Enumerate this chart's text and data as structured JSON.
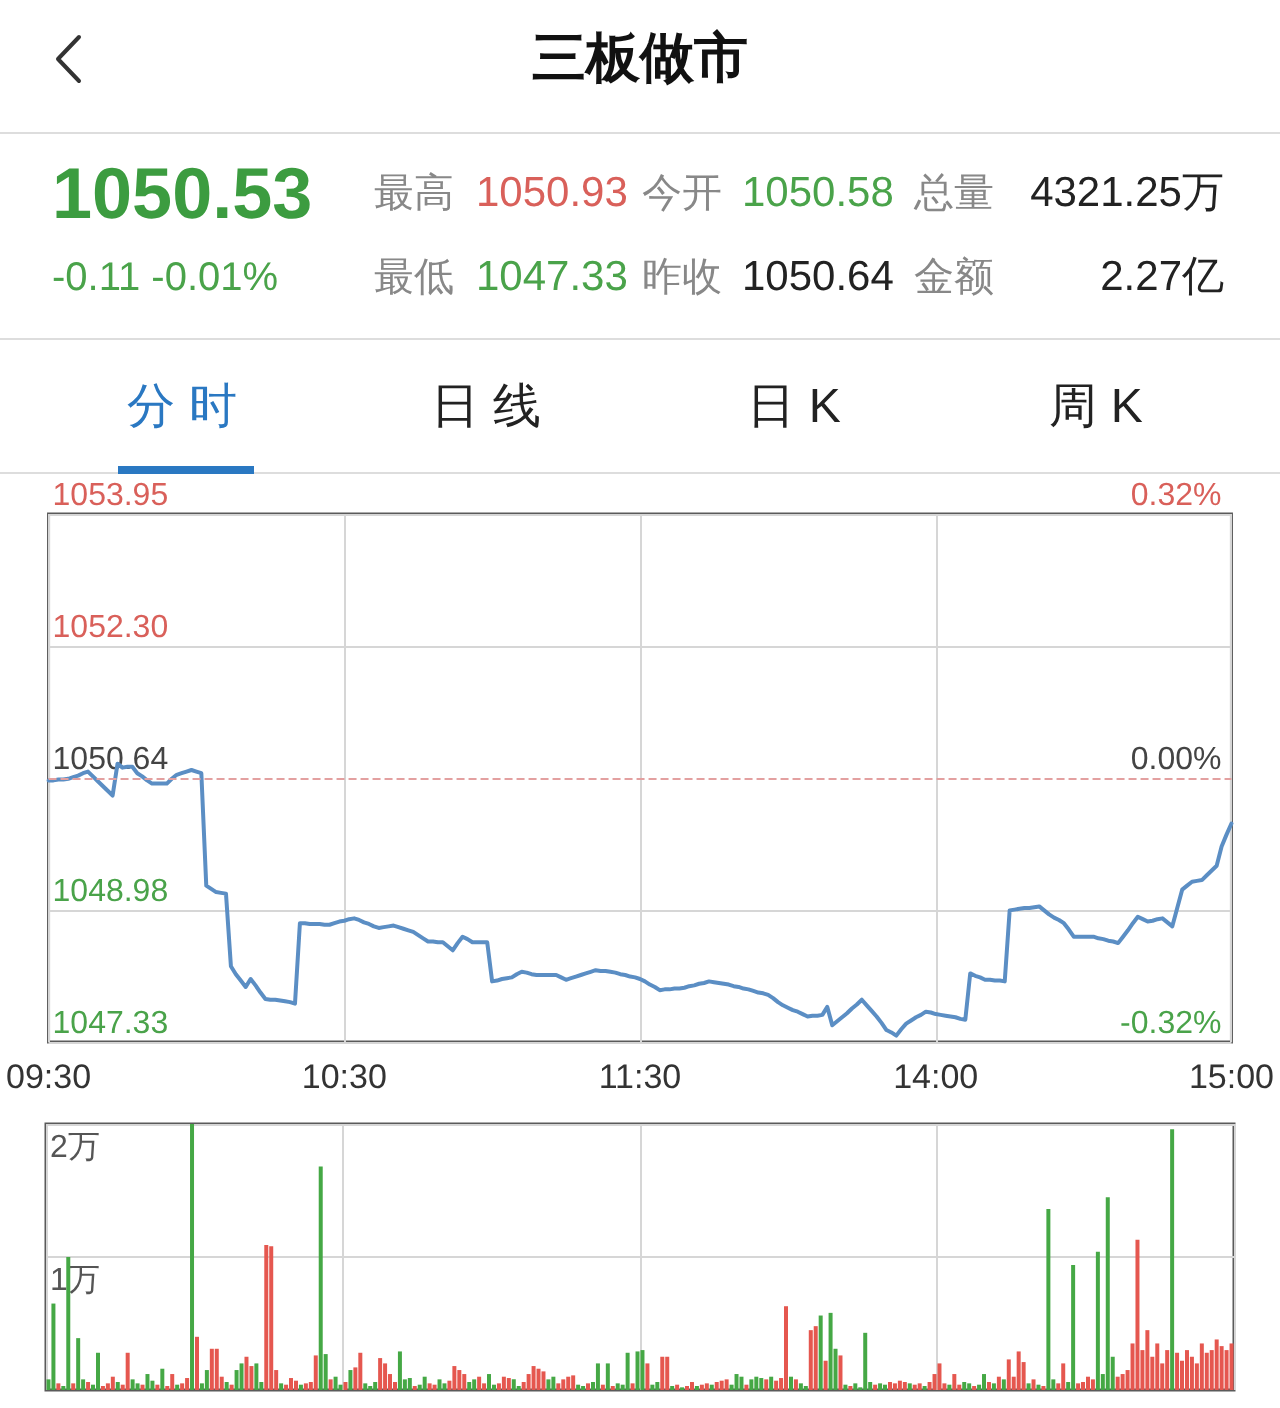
{
  "chart_data": [
    {
      "type": "line",
      "title": "三板做市",
      "annotations": [
        "1050.53",
        "-0.11 -0.01%",
        "最高",
        "1050.93",
        "今开",
        "1050.58",
        "总量",
        "4321.25万",
        "最低",
        "1047.33",
        "昨收",
        "1050.64",
        "金额",
        "2.27亿",
        "分 时",
        "日 线",
        "日 K",
        "周 K"
      ],
      "categories": [
        "09:30",
        null,
        null,
        null,
        null,
        null,
        null,
        null,
        null,
        null,
        null,
        null,
        null,
        null,
        null,
        null,
        null,
        null,
        null,
        null,
        null,
        null,
        null,
        null,
        null,
        null,
        null,
        null,
        null,
        null,
        null,
        null,
        null,
        null,
        null,
        null,
        null,
        null,
        null,
        null,
        null,
        null,
        null,
        null,
        null,
        null,
        null,
        null,
        null,
        null,
        null,
        null,
        null,
        null,
        null,
        null,
        null,
        null,
        null,
        null,
        "10:30",
        null,
        null,
        null,
        null,
        null,
        null,
        null,
        null,
        null,
        null,
        null,
        null,
        null,
        null,
        null,
        null,
        null,
        null,
        null,
        null,
        null,
        null,
        null,
        null,
        null,
        null,
        null,
        null,
        null,
        null,
        null,
        null,
        null,
        null,
        null,
        null,
        null,
        null,
        null,
        null,
        null,
        null,
        null,
        null,
        null,
        null,
        null,
        null,
        null,
        null,
        null,
        null,
        null,
        null,
        null,
        null,
        null,
        null,
        null,
        "11:30",
        null,
        null,
        null,
        null,
        null,
        null,
        null,
        null,
        null,
        null,
        null,
        null,
        null,
        null,
        null,
        null,
        null,
        null,
        null,
        null,
        null,
        null,
        null,
        null,
        null,
        null,
        null,
        null,
        null,
        null,
        null,
        null,
        null,
        null,
        null,
        null,
        null,
        null,
        null,
        null,
        null,
        null,
        null,
        null,
        null,
        null,
        null,
        null,
        null,
        null,
        null,
        null,
        null,
        null,
        null,
        null,
        null,
        null,
        null,
        "14:00",
        null,
        null,
        null,
        null,
        null,
        null,
        null,
        null,
        null,
        null,
        null,
        null,
        null,
        null,
        null,
        null,
        null,
        null,
        null,
        null,
        null,
        null,
        null,
        null,
        null,
        null,
        null,
        null,
        null,
        null,
        null,
        null,
        null,
        null,
        null,
        null,
        null,
        null,
        null,
        null,
        null,
        null,
        null,
        null,
        null,
        null,
        null,
        null,
        null,
        null,
        null,
        null,
        null,
        null,
        null,
        null,
        null,
        null,
        null,
        "15:00"
      ],
      "values": [
        1050.61,
        1050.61,
        1050.62,
        1050.62,
        1050.63,
        1050.65,
        1050.67,
        1050.7,
        1050.72,
        1050.66,
        1050.6,
        1050.54,
        1050.48,
        1050.42,
        1050.82,
        1050.77,
        1050.78,
        1050.78,
        1050.7,
        1050.66,
        1050.61,
        1050.57,
        1050.57,
        1050.57,
        1050.57,
        1050.63,
        1050.68,
        1050.7,
        1050.72,
        1050.74,
        1050.72,
        1050.7,
        1049.29,
        1049.25,
        1049.21,
        1049.2,
        1049.19,
        1048.28,
        1048.18,
        1048.1,
        1048.02,
        1048.12,
        1048.04,
        1047.95,
        1047.87,
        1047.86,
        1047.86,
        1047.85,
        1047.84,
        1047.83,
        1047.81,
        1048.82,
        1048.82,
        1048.81,
        1048.81,
        1048.81,
        1048.8,
        1048.8,
        1048.82,
        1048.84,
        1048.85,
        1048.87,
        1048.88,
        1048.86,
        1048.83,
        1048.81,
        1048.78,
        1048.76,
        1048.77,
        1048.78,
        1048.79,
        1048.77,
        1048.75,
        1048.73,
        1048.71,
        1048.67,
        1048.63,
        1048.59,
        1048.59,
        1048.58,
        1048.58,
        1048.53,
        1048.48,
        1048.57,
        1048.65,
        1048.62,
        1048.58,
        1048.58,
        1048.58,
        1048.58,
        1048.09,
        1048.1,
        1048.12,
        1048.13,
        1048.14,
        1048.18,
        1048.21,
        1048.2,
        1048.18,
        1048.17,
        1048.17,
        1048.17,
        1048.17,
        1048.17,
        1048.14,
        1048.11,
        1048.13,
        1048.15,
        1048.17,
        1048.19,
        1048.21,
        1048.23,
        1048.22,
        1048.22,
        1048.21,
        1048.2,
        1048.18,
        1048.17,
        1048.15,
        1048.14,
        1048.12,
        1048.09,
        1048.05,
        1048.02,
        1047.98,
        1047.99,
        1047.99,
        1048.0,
        1048.0,
        1048.01,
        1048.03,
        1048.04,
        1048.06,
        1048.07,
        1048.09,
        1048.08,
        1048.07,
        1048.06,
        1048.05,
        1048.03,
        1048.02,
        1048.0,
        1047.99,
        1047.97,
        1047.95,
        1047.94,
        1047.92,
        1047.88,
        1047.83,
        1047.79,
        1047.76,
        1047.73,
        1047.71,
        1047.68,
        1047.65,
        1047.66,
        1047.66,
        1047.67,
        1047.77,
        1047.54,
        1047.59,
        1047.64,
        1047.69,
        1047.75,
        1047.8,
        1047.86,
        1047.79,
        1047.72,
        1047.65,
        1047.57,
        1047.48,
        1047.45,
        1047.41,
        1047.49,
        1047.56,
        1047.6,
        1047.64,
        1047.67,
        1047.71,
        1047.7,
        1047.68,
        1047.67,
        1047.66,
        1047.65,
        1047.64,
        1047.62,
        1047.61,
        1048.19,
        1048.16,
        1048.14,
        1048.11,
        1048.11,
        1048.1,
        1048.1,
        1048.09,
        1048.98,
        1048.99,
        1049.0,
        1049.01,
        1049.01,
        1049.02,
        1049.03,
        1048.98,
        1048.93,
        1048.89,
        1048.86,
        1048.82,
        1048.74,
        1048.65,
        1048.65,
        1048.65,
        1048.65,
        1048.65,
        1048.63,
        1048.62,
        1048.6,
        1048.59,
        1048.57,
        1048.65,
        1048.73,
        1048.82,
        1048.9,
        1048.87,
        1048.84,
        1048.85,
        1048.87,
        1048.88,
        1048.83,
        1048.78,
        1049.01,
        1049.24,
        1049.29,
        1049.34,
        1049.35,
        1049.36,
        1049.42,
        1049.48,
        1049.54,
        1049.78,
        1049.93,
        1050.07
      ],
      "color": "#5b8ec4",
      "ylim": [
        1047.33,
        1053.95
      ],
      "yticks": [
        1047.33,
        1048.98,
        1050.64,
        {
          "value": 1052.3,
          "label": "1052.30"
        },
        1053.95
      ],
      "y2lim": [
        -0.32,
        0.32
      ],
      "y2ticks": [
        {
          "value": -0.32,
          "label": "-0.32%"
        },
        {
          "value": 0,
          "label": "0.00%"
        },
        {
          "value": 0.32,
          "label": "0.32%"
        }
      ],
      "ref_lines": [
        {
          "axis": "y",
          "value": 1050.64,
          "color": "#e3a0a0",
          "line_style": "dashed"
        }
      ],
      "grid": true
    },
    {
      "type": "bar",
      "categories": [
        null,
        null,
        null,
        null,
        null,
        null,
        null,
        null,
        null,
        null,
        null,
        null,
        null,
        null,
        null,
        null,
        null,
        null,
        null,
        null,
        null,
        null,
        null,
        null,
        null,
        null,
        null,
        null,
        null,
        null,
        null,
        null,
        null,
        null,
        null,
        null,
        null,
        null,
        null,
        null,
        null,
        null,
        null,
        null,
        null,
        null,
        null,
        null,
        null,
        null,
        null,
        null,
        null,
        null,
        null,
        null,
        null,
        null,
        null,
        null,
        null,
        null,
        null,
        null,
        null,
        null,
        null,
        null,
        null,
        null,
        null,
        null,
        null,
        null,
        null,
        null,
        null,
        null,
        null,
        null,
        null,
        null,
        null,
        null,
        null,
        null,
        null,
        null,
        null,
        null,
        null,
        null,
        null,
        null,
        null,
        null,
        null,
        null,
        null,
        null,
        null,
        null,
        null,
        null,
        null,
        null,
        null,
        null,
        null,
        null,
        null,
        null,
        null,
        null,
        null,
        null,
        null,
        null,
        null,
        null,
        null,
        null,
        null,
        null,
        null,
        null,
        null,
        null,
        null,
        null,
        null,
        null,
        null,
        null,
        null,
        null,
        null,
        null,
        null,
        null,
        null,
        null,
        null,
        null,
        null,
        null,
        null,
        null,
        null,
        null,
        null,
        null,
        null,
        null,
        null,
        null,
        null,
        null,
        null,
        null,
        null,
        null,
        null,
        null,
        null,
        null,
        null,
        null,
        null,
        null,
        null,
        null,
        null,
        null,
        null,
        null,
        null,
        null,
        null,
        null,
        null,
        null,
        null,
        null,
        null,
        null,
        null,
        null,
        null,
        null,
        null,
        null,
        null,
        null,
        null,
        null,
        null,
        null,
        null,
        null,
        null,
        null,
        null,
        null,
        null,
        null,
        null,
        null,
        null,
        null,
        null,
        null,
        null,
        null,
        null,
        null,
        null,
        null,
        null,
        null,
        null,
        null,
        null,
        null,
        null,
        null,
        null,
        null,
        null,
        null,
        null,
        null,
        null,
        null,
        null,
        null,
        null,
        null,
        null,
        null
      ],
      "values": [
        0.08,
        0.65,
        0.05,
        0.03,
        1.0,
        0.05,
        0.39,
        0.08,
        0.06,
        0.04,
        0.28,
        0.03,
        0.05,
        0.1,
        0.06,
        0.04,
        0.28,
        0.08,
        0.05,
        0.04,
        0.12,
        0.07,
        0.04,
        0.16,
        0.03,
        0.12,
        0.04,
        0.05,
        0.09,
        2.0,
        0.4,
        0.05,
        0.15,
        0.31,
        0.31,
        0.1,
        0.06,
        0.04,
        0.15,
        0.2,
        0.25,
        0.18,
        0.2,
        0.06,
        1.09,
        1.08,
        0.15,
        0.05,
        0.04,
        0.09,
        0.07,
        0.04,
        0.05,
        0.06,
        0.26,
        1.68,
        0.27,
        0.08,
        0.1,
        0.04,
        0.06,
        0.15,
        0.17,
        0.28,
        0.05,
        0.03,
        0.06,
        0.24,
        0.2,
        0.12,
        0.06,
        0.29,
        0.08,
        0.09,
        0.03,
        0.04,
        0.1,
        0.05,
        0.04,
        0.08,
        0.05,
        0.07,
        0.18,
        0.15,
        0.12,
        0.06,
        0.08,
        0.1,
        0.05,
        0.12,
        0.04,
        0.05,
        0.1,
        0.09,
        0.08,
        0.03,
        0.06,
        0.12,
        0.18,
        0.16,
        0.14,
        0.08,
        0.1,
        0.05,
        0.08,
        0.1,
        0.11,
        0.04,
        0.03,
        0.05,
        0.06,
        0.2,
        0.04,
        0.2,
        0.03,
        0.05,
        0.04,
        0.28,
        0.05,
        0.29,
        0.3,
        0.2,
        0.04,
        0.06,
        0.25,
        0.25,
        0.03,
        0.04,
        0.02,
        0.03,
        0.06,
        0.03,
        0.04,
        0.05,
        0.04,
        0.06,
        0.07,
        0.08,
        0.04,
        0.12,
        0.1,
        0.04,
        0.08,
        0.1,
        0.09,
        0.08,
        0.1,
        0.07,
        0.09,
        0.63,
        0.1,
        0.08,
        0.05,
        0.03,
        0.45,
        0.48,
        0.56,
        0.22,
        0.58,
        0.31,
        0.26,
        0.04,
        0.03,
        0.05,
        0.02,
        0.43,
        0.06,
        0.04,
        0.05,
        0.04,
        0.06,
        0.05,
        0.07,
        0.06,
        0.05,
        0.04,
        0.05,
        0.03,
        0.06,
        0.12,
        0.2,
        0.05,
        0.04,
        0.12,
        0.04,
        0.06,
        0.05,
        0.03,
        0.04,
        0.12,
        0.06,
        0.05,
        0.1,
        0.08,
        0.23,
        0.1,
        0.29,
        0.21,
        0.05,
        0.08,
        0.04,
        0.03,
        1.36,
        0.08,
        0.05,
        0.2,
        0.06,
        0.94,
        0.05,
        0.06,
        0.1,
        0.08,
        1.04,
        0.12,
        1.45,
        0.25,
        0.1,
        0.12,
        0.15,
        0.35,
        1.13,
        0.3,
        0.45,
        0.25,
        0.35,
        0.2,
        0.3,
        1.96,
        0.28,
        0.22,
        0.3,
        0.25,
        0.2,
        0.35,
        0.28,
        0.3,
        0.38,
        0.33,
        0.3,
        0.35
      ],
      "colors": [
        "#45a845",
        "#45a845",
        "#e5574f",
        "#45a845",
        "#45a845",
        "#e5574f",
        "#45a845",
        "#45a845",
        "#e5574f",
        "#45a845",
        "#45a845",
        "#e5574f",
        "#e5574f",
        "#e5574f",
        "#45a845",
        "#e5574f",
        "#e5574f",
        "#45a845",
        "#45a845",
        "#e5574f",
        "#45a845",
        "#45a845",
        "#e5574f",
        "#45a845",
        "#e5574f",
        "#e5574f",
        "#45a845",
        "#e5574f",
        "#e5574f",
        "#45a845",
        "#e5574f",
        "#45a845",
        "#45a845",
        "#e5574f",
        "#e5574f",
        "#e5574f",
        "#45a845",
        "#e5574f",
        "#45a845",
        "#45a845",
        "#e5574f",
        "#e5574f",
        "#45a845",
        "#45a845",
        "#e5574f",
        "#e5574f",
        "#e5574f",
        "#45a845",
        "#e5574f",
        "#e5574f",
        "#e5574f",
        "#45a845",
        "#e5574f",
        "#e5574f",
        "#e5574f",
        "#45a845",
        "#45a845",
        "#e5574f",
        "#45a845",
        "#45a845",
        "#e5574f",
        "#45a845",
        "#e5574f",
        "#e5574f",
        "#45a845",
        "#45a845",
        "#45a845",
        "#e5574f",
        "#e5574f",
        "#e5574f",
        "#e5574f",
        "#45a845",
        "#45a845",
        "#45a845",
        "#e5574f",
        "#45a845",
        "#45a845",
        "#e5574f",
        "#e5574f",
        "#45a845",
        "#45a845",
        "#e5574f",
        "#e5574f",
        "#e5574f",
        "#e5574f",
        "#45a845",
        "#45a845",
        "#e5574f",
        "#e5574f",
        "#45a845",
        "#45a845",
        "#e5574f",
        "#e5574f",
        "#e5574f",
        "#45a845",
        "#45a845",
        "#e5574f",
        "#e5574f",
        "#e5574f",
        "#e5574f",
        "#e5574f",
        "#45a845",
        "#45a845",
        "#e5574f",
        "#e5574f",
        "#e5574f",
        "#e5574f",
        "#45a845",
        "#45a845",
        "#e5574f",
        "#45a845",
        "#45a845",
        "#e5574f",
        "#45a845",
        "#e5574f",
        "#45a845",
        "#45a845",
        "#45a845",
        "#e5574f",
        "#45a845",
        "#45a845",
        "#e5574f",
        "#45a845",
        "#45a845",
        "#e5574f",
        "#e5574f",
        "#45a845",
        "#e5574f",
        "#45a845",
        "#e5574f",
        "#e5574f",
        "#45a845",
        "#e5574f",
        "#e5574f",
        "#45a845",
        "#e5574f",
        "#e5574f",
        "#e5574f",
        "#45a845",
        "#45a845",
        "#45a845",
        "#e5574f",
        "#45a845",
        "#45a845",
        "#45a845",
        "#e5574f",
        "#45a845",
        "#e5574f",
        "#e5574f",
        "#e5574f",
        "#45a845",
        "#e5574f",
        "#45a845",
        "#45a845",
        "#e5574f",
        "#e5574f",
        "#45a845",
        "#e5574f",
        "#45a845",
        "#45a845",
        "#e5574f",
        "#45a845",
        "#e5574f",
        "#45a845",
        "#45a845",
        "#45a845",
        "#45a845",
        "#e5574f",
        "#45a845",
        "#45a845",
        "#e5574f",
        "#e5574f",
        "#e5574f",
        "#e5574f",
        "#45a845",
        "#e5574f",
        "#e5574f",
        "#45a845",
        "#e5574f",
        "#e5574f",
        "#e5574f",
        "#e5574f",
        "#45a845",
        "#e5574f",
        "#e5574f",
        "#45a845",
        "#45a845",
        "#e5574f",
        "#45a845",
        "#45a845",
        "#e5574f",
        "#45a845",
        "#e5574f",
        "#45a845",
        "#e5574f",
        "#e5574f",
        "#e5574f",
        "#e5574f",
        "#45a845",
        "#e5574f",
        "#45a845",
        "#e5574f",
        "#45a845",
        "#45a845",
        "#e5574f",
        "#e5574f",
        "#45a845",
        "#45a845",
        "#e5574f",
        "#e5574f",
        "#e5574f",
        "#e5574f",
        "#45a845",
        "#45a845",
        "#45a845",
        "#45a845",
        "#e5574f",
        "#e5574f",
        "#e5574f",
        "#e5574f",
        "#e5574f",
        "#e5574f",
        "#e5574f",
        "#e5574f",
        "#e5574f",
        "#e5574f",
        "#e5574f",
        "#45a845",
        "#e5574f",
        "#e5574f",
        "#e5574f",
        "#e5574f",
        "#e5574f",
        "#e5574f",
        "#e5574f",
        "#e5574f",
        "#e5574f",
        "#e5574f",
        "#e5574f",
        "#e5574f"
      ],
      "ylim": [
        0,
        2
      ],
      "yticks": [
        {
          "value": 1,
          "label": "1万"
        },
        {
          "value": 2,
          "label": "2万"
        }
      ],
      "tick_labels": "y",
      "grid": true
    }
  ]
}
